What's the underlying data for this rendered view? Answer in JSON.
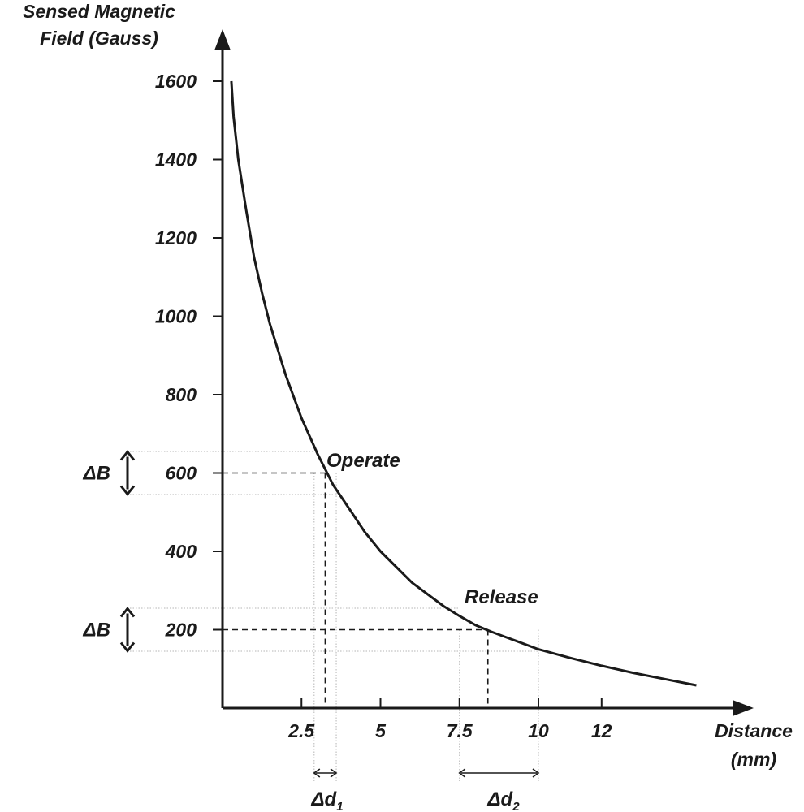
{
  "chart_data": {
    "type": "line",
    "ylabel": [
      "Sensed Magnetic",
      "Field (Gauss)"
    ],
    "xlabel": [
      "Distance",
      "(mm)"
    ],
    "yticks": [
      "1600",
      "1400",
      "1200",
      "1000",
      "800",
      "600",
      "400",
      "200"
    ],
    "xticks": [
      "2.5",
      "5",
      "7.5",
      "10",
      "12"
    ],
    "xlim": [
      0,
      15.5
    ],
    "ylim": [
      0,
      1700
    ],
    "series": [
      {
        "x": [
          0.28,
          0.35,
          0.5,
          0.75,
          1.0,
          1.25,
          1.5,
          2.0,
          2.5,
          3.0,
          3.25,
          3.5,
          4.0,
          4.5,
          5.0,
          6.0,
          7.0,
          7.5,
          8.0,
          8.5,
          9.0,
          10.0,
          11.0,
          12.0,
          13.0,
          14.0,
          15.0
        ],
        "y": [
          1600,
          1510,
          1400,
          1270,
          1150,
          1060,
          980,
          850,
          740,
          650,
          610,
          570,
          510,
          450,
          400,
          320,
          260,
          235,
          212,
          195,
          180,
          150,
          128,
          108,
          90,
          74,
          58
        ]
      }
    ],
    "annotations": {
      "operate": {
        "label": "Operate",
        "x": 3.25,
        "y": 600,
        "band": [
          545,
          655
        ],
        "dx": [
          2.9,
          3.6
        ]
      },
      "release": {
        "label": "Release",
        "x": 8.4,
        "y": 200,
        "band": [
          145,
          255
        ],
        "dx": [
          7.5,
          10.0
        ]
      },
      "delta_b": "ΔB",
      "delta_d1": [
        "Δd",
        "1"
      ],
      "delta_d2": [
        "Δd",
        "2"
      ]
    }
  }
}
